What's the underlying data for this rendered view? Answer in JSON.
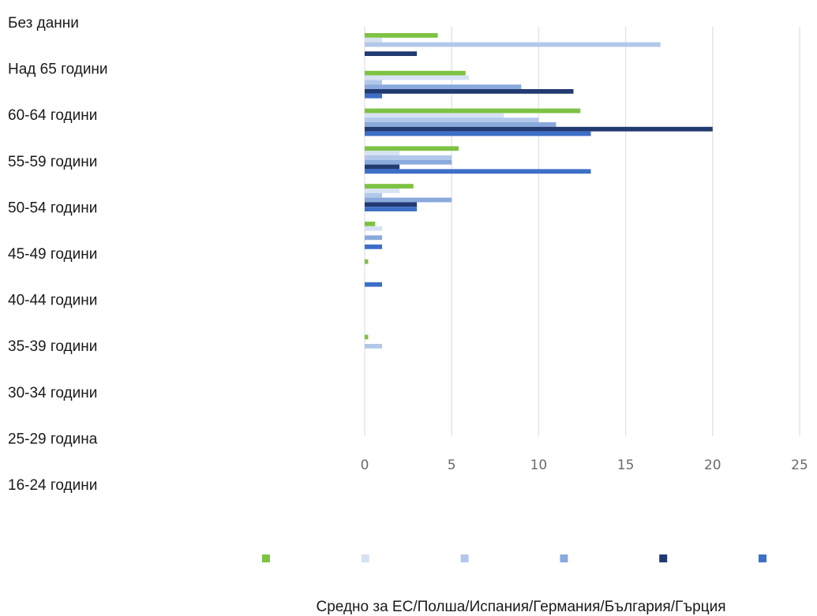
{
  "chart_data": {
    "type": "bar",
    "orientation": "horizontal",
    "title": "",
    "caption": "Средно за ЕС/Полша/Испания/Германия/България/Гърция",
    "categories": [
      "Без данни",
      "Над 65 години",
      "60-64 години",
      "55-59 години",
      "50-54 години",
      "45-49 години",
      "40-44 години",
      "35-39 години",
      "30-34 години",
      "25-29 година",
      "16-24 години"
    ],
    "x_ticks": [
      0,
      5,
      10,
      15,
      20,
      25
    ],
    "xlim": [
      0,
      25
    ],
    "grid": true,
    "legend_position": "bottom",
    "series": [
      {
        "color": "#7dc242",
        "values": [
          4.2,
          5.8,
          12.4,
          5.4,
          2.8,
          0.6,
          0.2,
          null,
          0.2,
          null,
          null
        ]
      },
      {
        "color": "#d6e1f3",
        "values": [
          1.0,
          6.0,
          8.0,
          2.0,
          2.0,
          1.0,
          null,
          null,
          null,
          null,
          null
        ]
      },
      {
        "color": "#b2c8ea",
        "values": [
          17.0,
          1.0,
          10.0,
          5.0,
          1.0,
          null,
          null,
          null,
          1.0,
          null,
          null
        ]
      },
      {
        "color": "#8aa9dc",
        "values": [
          null,
          9.0,
          11.0,
          5.0,
          5.0,
          1.0,
          null,
          null,
          null,
          null,
          null
        ]
      },
      {
        "color": "#213a71",
        "values": [
          3.0,
          12.0,
          20.0,
          2.0,
          3.0,
          null,
          null,
          null,
          null,
          null,
          null
        ]
      },
      {
        "color": "#3d6fc7",
        "values": [
          null,
          1.0,
          13.0,
          13.0,
          3.0,
          1.0,
          1.0,
          null,
          null,
          null,
          null
        ]
      }
    ]
  }
}
